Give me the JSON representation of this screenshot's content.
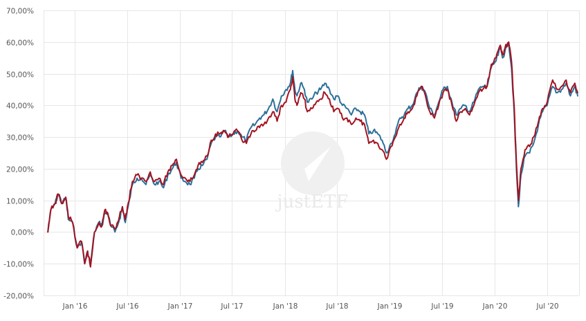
{
  "chart_data": {
    "type": "line",
    "title": "",
    "xlabel": "",
    "ylabel": "",
    "x_range": [
      "2015-09-15",
      "2020-10-20"
    ],
    "ylim": [
      -20,
      70
    ],
    "y_ticks": [
      -20,
      -10,
      0,
      10,
      20,
      30,
      40,
      50,
      60,
      70
    ],
    "y_tick_labels": [
      "-20,00%",
      "-10,00%",
      "0,00%",
      "10,00%",
      "20,00%",
      "30,00%",
      "40,00%",
      "50,00%",
      "60,00%",
      "70,00%"
    ],
    "x_ticks": [
      {
        "date": "2016-01-01",
        "label": "Jan '16"
      },
      {
        "date": "2016-07-01",
        "label": "Jul '16"
      },
      {
        "date": "2017-01-01",
        "label": "Jan '17"
      },
      {
        "date": "2017-07-01",
        "label": "Jul '17"
      },
      {
        "date": "2018-01-01",
        "label": "Jan '18"
      },
      {
        "date": "2018-07-01",
        "label": "Jul '18"
      },
      {
        "date": "2019-01-01",
        "label": "Jan '19"
      },
      {
        "date": "2019-07-01",
        "label": "Jul '19"
      },
      {
        "date": "2020-01-01",
        "label": "Jan '20"
      },
      {
        "date": "2020-07-01",
        "label": "Jul '20"
      }
    ],
    "grid": true,
    "legend": "none",
    "watermark": "justETF",
    "series": [
      {
        "color": "#2b6f99",
        "points": [
          [
            "2015-09-30",
            0
          ],
          [
            "2015-10-10",
            7
          ],
          [
            "2015-10-25",
            9
          ],
          [
            "2015-11-05",
            12
          ],
          [
            "2015-11-20",
            9
          ],
          [
            "2015-12-01",
            11
          ],
          [
            "2015-12-10",
            4
          ],
          [
            "2015-12-25",
            3
          ],
          [
            "2016-01-10",
            -5
          ],
          [
            "2016-01-25",
            -3
          ],
          [
            "2016-02-05",
            -10
          ],
          [
            "2016-02-15",
            -6
          ],
          [
            "2016-02-25",
            -10
          ],
          [
            "2016-03-10",
            0
          ],
          [
            "2016-03-25",
            3
          ],
          [
            "2016-04-05",
            2
          ],
          [
            "2016-04-15",
            6
          ],
          [
            "2016-04-25",
            6
          ],
          [
            "2016-05-05",
            2
          ],
          [
            "2016-05-20",
            0
          ],
          [
            "2016-06-05",
            4
          ],
          [
            "2016-06-15",
            8
          ],
          [
            "2016-06-25",
            3
          ],
          [
            "2016-07-05",
            8
          ],
          [
            "2016-07-20",
            15
          ],
          [
            "2016-08-05",
            17
          ],
          [
            "2016-08-20",
            17
          ],
          [
            "2016-09-05",
            15
          ],
          [
            "2016-09-20",
            18
          ],
          [
            "2016-10-05",
            15
          ],
          [
            "2016-10-20",
            16
          ],
          [
            "2016-11-05",
            14
          ],
          [
            "2016-11-20",
            18
          ],
          [
            "2016-12-05",
            20
          ],
          [
            "2016-12-20",
            22
          ],
          [
            "2017-01-05",
            17
          ],
          [
            "2017-01-20",
            16
          ],
          [
            "2017-02-05",
            15
          ],
          [
            "2017-02-20",
            17
          ],
          [
            "2017-03-05",
            20
          ],
          [
            "2017-03-20",
            21
          ],
          [
            "2017-04-05",
            23
          ],
          [
            "2017-04-20",
            28
          ],
          [
            "2017-05-05",
            30
          ],
          [
            "2017-05-20",
            30
          ],
          [
            "2017-06-05",
            32
          ],
          [
            "2017-06-20",
            30
          ],
          [
            "2017-07-05",
            31
          ],
          [
            "2017-07-20",
            32
          ],
          [
            "2017-08-05",
            30
          ],
          [
            "2017-08-20",
            29
          ],
          [
            "2017-09-05",
            33
          ],
          [
            "2017-09-20",
            34
          ],
          [
            "2017-10-05",
            36
          ],
          [
            "2017-10-20",
            37
          ],
          [
            "2017-11-05",
            39
          ],
          [
            "2017-11-20",
            42
          ],
          [
            "2017-12-05",
            38
          ],
          [
            "2017-12-20",
            43
          ],
          [
            "2018-01-05",
            45
          ],
          [
            "2018-01-20",
            47
          ],
          [
            "2018-01-28",
            51
          ],
          [
            "2018-02-05",
            45
          ],
          [
            "2018-02-12",
            43
          ],
          [
            "2018-02-25",
            47
          ],
          [
            "2018-03-10",
            45
          ],
          [
            "2018-03-20",
            41
          ],
          [
            "2018-04-05",
            42
          ],
          [
            "2018-04-20",
            44
          ],
          [
            "2018-05-05",
            45
          ],
          [
            "2018-05-20",
            47
          ],
          [
            "2018-06-05",
            45
          ],
          [
            "2018-06-20",
            42
          ],
          [
            "2018-07-05",
            43
          ],
          [
            "2018-07-20",
            40
          ],
          [
            "2018-08-05",
            39
          ],
          [
            "2018-08-20",
            37
          ],
          [
            "2018-09-05",
            39
          ],
          [
            "2018-09-20",
            38
          ],
          [
            "2018-10-05",
            37
          ],
          [
            "2018-10-20",
            31
          ],
          [
            "2018-11-05",
            32
          ],
          [
            "2018-11-20",
            31
          ],
          [
            "2018-12-05",
            29
          ],
          [
            "2018-12-20",
            25
          ],
          [
            "2019-01-05",
            28
          ],
          [
            "2019-01-20",
            31
          ],
          [
            "2019-02-05",
            36
          ],
          [
            "2019-02-20",
            37
          ],
          [
            "2019-03-05",
            39
          ],
          [
            "2019-03-20",
            40
          ],
          [
            "2019-04-05",
            44
          ],
          [
            "2019-04-20",
            46
          ],
          [
            "2019-05-05",
            44
          ],
          [
            "2019-05-20",
            39
          ],
          [
            "2019-06-05",
            37
          ],
          [
            "2019-06-20",
            41
          ],
          [
            "2019-07-05",
            45
          ],
          [
            "2019-07-20",
            46
          ],
          [
            "2019-08-05",
            41
          ],
          [
            "2019-08-20",
            37
          ],
          [
            "2019-09-05",
            39
          ],
          [
            "2019-09-20",
            40
          ],
          [
            "2019-10-05",
            38
          ],
          [
            "2019-10-20",
            41
          ],
          [
            "2019-11-05",
            45
          ],
          [
            "2019-11-20",
            46
          ],
          [
            "2019-12-05",
            46
          ],
          [
            "2019-12-20",
            52
          ],
          [
            "2020-01-05",
            54
          ],
          [
            "2020-01-20",
            58
          ],
          [
            "2020-01-28",
            55
          ],
          [
            "2020-02-05",
            57
          ],
          [
            "2020-02-18",
            60
          ],
          [
            "2020-02-28",
            52
          ],
          [
            "2020-03-08",
            38
          ],
          [
            "2020-03-16",
            20
          ],
          [
            "2020-03-23",
            8
          ],
          [
            "2020-04-01",
            18
          ],
          [
            "2020-04-15",
            24
          ],
          [
            "2020-05-01",
            25
          ],
          [
            "2020-05-15",
            28
          ],
          [
            "2020-06-01",
            34
          ],
          [
            "2020-06-15",
            38
          ],
          [
            "2020-07-01",
            40
          ],
          [
            "2020-07-20",
            46
          ],
          [
            "2020-08-05",
            44
          ],
          [
            "2020-08-20",
            45
          ],
          [
            "2020-09-05",
            47
          ],
          [
            "2020-09-20",
            43
          ],
          [
            "2020-10-05",
            46
          ],
          [
            "2020-10-15",
            43
          ]
        ]
      },
      {
        "color": "#a31320",
        "points": [
          [
            "2015-09-30",
            0
          ],
          [
            "2015-10-10",
            7
          ],
          [
            "2015-10-25",
            9
          ],
          [
            "2015-11-05",
            12
          ],
          [
            "2015-11-20",
            9
          ],
          [
            "2015-12-01",
            11
          ],
          [
            "2015-12-10",
            5
          ],
          [
            "2015-12-25",
            3
          ],
          [
            "2016-01-10",
            -5
          ],
          [
            "2016-01-25",
            -3
          ],
          [
            "2016-02-05",
            -10
          ],
          [
            "2016-02-15",
            -6
          ],
          [
            "2016-02-25",
            -11
          ],
          [
            "2016-03-10",
            0
          ],
          [
            "2016-03-25",
            3
          ],
          [
            "2016-04-05",
            2
          ],
          [
            "2016-04-15",
            7
          ],
          [
            "2016-04-25",
            6
          ],
          [
            "2016-05-05",
            2
          ],
          [
            "2016-05-20",
            1
          ],
          [
            "2016-06-05",
            5
          ],
          [
            "2016-06-15",
            8
          ],
          [
            "2016-06-25",
            4
          ],
          [
            "2016-07-05",
            9
          ],
          [
            "2016-07-20",
            16
          ],
          [
            "2016-08-05",
            18
          ],
          [
            "2016-08-20",
            17
          ],
          [
            "2016-09-05",
            16
          ],
          [
            "2016-09-20",
            19
          ],
          [
            "2016-10-05",
            16
          ],
          [
            "2016-10-20",
            17
          ],
          [
            "2016-11-05",
            15
          ],
          [
            "2016-11-20",
            19
          ],
          [
            "2016-12-05",
            21
          ],
          [
            "2016-12-20",
            23
          ],
          [
            "2017-01-05",
            18
          ],
          [
            "2017-01-20",
            17
          ],
          [
            "2017-02-05",
            16
          ],
          [
            "2017-02-20",
            18
          ],
          [
            "2017-03-05",
            21
          ],
          [
            "2017-03-20",
            22
          ],
          [
            "2017-04-05",
            24
          ],
          [
            "2017-04-20",
            29
          ],
          [
            "2017-05-05",
            31
          ],
          [
            "2017-05-20",
            31
          ],
          [
            "2017-06-05",
            32
          ],
          [
            "2017-06-20",
            30
          ],
          [
            "2017-07-05",
            31
          ],
          [
            "2017-07-20",
            32
          ],
          [
            "2017-08-05",
            29
          ],
          [
            "2017-08-20",
            28
          ],
          [
            "2017-09-05",
            31
          ],
          [
            "2017-09-20",
            32
          ],
          [
            "2017-10-05",
            33
          ],
          [
            "2017-10-20",
            34
          ],
          [
            "2017-11-05",
            36
          ],
          [
            "2017-11-20",
            38
          ],
          [
            "2017-12-05",
            35
          ],
          [
            "2017-12-20",
            40
          ],
          [
            "2018-01-05",
            41
          ],
          [
            "2018-01-20",
            45
          ],
          [
            "2018-01-28",
            49
          ],
          [
            "2018-02-05",
            42
          ],
          [
            "2018-02-12",
            40
          ],
          [
            "2018-02-25",
            44
          ],
          [
            "2018-03-10",
            42
          ],
          [
            "2018-03-20",
            38
          ],
          [
            "2018-04-05",
            39
          ],
          [
            "2018-04-20",
            41
          ],
          [
            "2018-05-05",
            42
          ],
          [
            "2018-05-20",
            44
          ],
          [
            "2018-06-05",
            42
          ],
          [
            "2018-06-20",
            38
          ],
          [
            "2018-07-05",
            39
          ],
          [
            "2018-07-20",
            36
          ],
          [
            "2018-08-05",
            36
          ],
          [
            "2018-08-20",
            34
          ],
          [
            "2018-09-05",
            36
          ],
          [
            "2018-09-20",
            35
          ],
          [
            "2018-10-05",
            34
          ],
          [
            "2018-10-20",
            28
          ],
          [
            "2018-11-05",
            29
          ],
          [
            "2018-11-20",
            28
          ],
          [
            "2018-12-05",
            26
          ],
          [
            "2018-12-20",
            23
          ],
          [
            "2019-01-05",
            27
          ],
          [
            "2019-01-20",
            30
          ],
          [
            "2019-02-05",
            34
          ],
          [
            "2019-02-20",
            36
          ],
          [
            "2019-03-05",
            38
          ],
          [
            "2019-03-20",
            39
          ],
          [
            "2019-04-05",
            43
          ],
          [
            "2019-04-20",
            46
          ],
          [
            "2019-05-05",
            43
          ],
          [
            "2019-05-20",
            38
          ],
          [
            "2019-06-05",
            36
          ],
          [
            "2019-06-20",
            40
          ],
          [
            "2019-07-05",
            44
          ],
          [
            "2019-07-20",
            45
          ],
          [
            "2019-08-05",
            40
          ],
          [
            "2019-08-20",
            35
          ],
          [
            "2019-09-05",
            38
          ],
          [
            "2019-09-20",
            39
          ],
          [
            "2019-10-05",
            37
          ],
          [
            "2019-10-20",
            40
          ],
          [
            "2019-11-05",
            44
          ],
          [
            "2019-11-20",
            45
          ],
          [
            "2019-12-05",
            46
          ],
          [
            "2019-12-20",
            53
          ],
          [
            "2020-01-05",
            55
          ],
          [
            "2020-01-20",
            59
          ],
          [
            "2020-01-28",
            56
          ],
          [
            "2020-02-05",
            58
          ],
          [
            "2020-02-18",
            60
          ],
          [
            "2020-02-28",
            54
          ],
          [
            "2020-03-08",
            40
          ],
          [
            "2020-03-16",
            22
          ],
          [
            "2020-03-23",
            10
          ],
          [
            "2020-04-01",
            20
          ],
          [
            "2020-04-15",
            26
          ],
          [
            "2020-05-01",
            27
          ],
          [
            "2020-05-15",
            30
          ],
          [
            "2020-06-01",
            35
          ],
          [
            "2020-06-15",
            39
          ],
          [
            "2020-07-01",
            41
          ],
          [
            "2020-07-20",
            48
          ],
          [
            "2020-08-05",
            45
          ],
          [
            "2020-08-20",
            46
          ],
          [
            "2020-09-05",
            48
          ],
          [
            "2020-09-20",
            44
          ],
          [
            "2020-10-05",
            47
          ],
          [
            "2020-10-15",
            44
          ]
        ]
      }
    ]
  }
}
